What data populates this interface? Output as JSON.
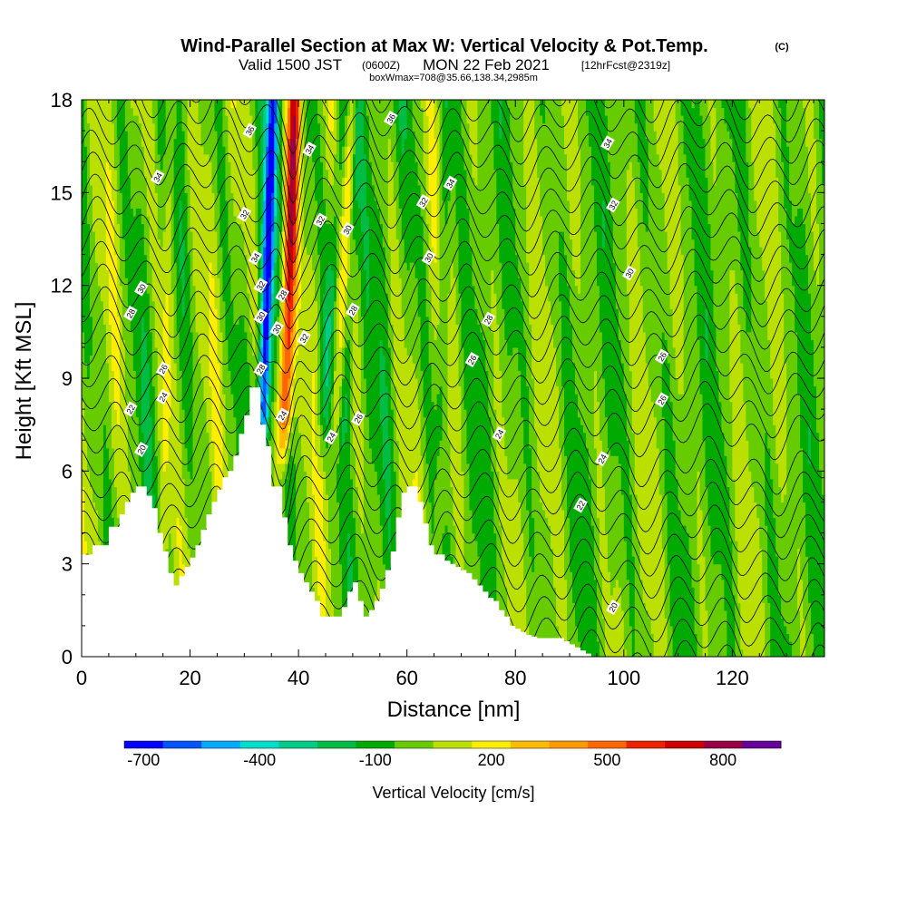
{
  "title": {
    "main": "Wind-Parallel Section at Max W: Vertical Velocity & Pot.Temp.",
    "copyright": "(C)",
    "valid_prefix": "Valid 1500 JST",
    "valid_utc": "(0600Z)",
    "valid_date": "MON 22 Feb 2021",
    "forecast": "[12hrFcst@2319z]",
    "box": "boxWmax=708@35.66,138.34,2985m"
  },
  "chart_data": {
    "type": "heatmap",
    "xlabel": "Distance [nm]",
    "ylabel": "Height [Kft MSL]",
    "xlim": [
      0,
      137
    ],
    "ylim": [
      0,
      18
    ],
    "x_ticks": [
      "0",
      "20",
      "40",
      "60",
      "80",
      "100",
      "120"
    ],
    "y_ticks": [
      "0",
      "3",
      "6",
      "9",
      "12",
      "15",
      "18"
    ],
    "terrain": {
      "x": [
        0,
        2,
        5,
        7,
        8,
        9,
        10,
        11,
        12,
        13,
        14,
        15,
        16,
        17,
        18,
        19,
        20,
        21,
        22,
        23,
        24,
        25,
        26,
        27,
        28,
        29,
        30,
        31,
        32,
        33,
        34,
        35,
        36,
        37,
        38,
        39,
        40,
        41,
        42,
        43,
        44,
        45,
        46,
        47,
        48,
        49,
        50,
        51,
        52,
        53,
        54,
        55,
        56,
        57,
        58,
        59,
        60,
        61,
        62,
        63,
        64,
        65,
        66,
        67,
        68,
        69,
        70,
        71,
        72,
        73,
        74,
        75,
        76,
        77,
        78,
        79,
        80,
        81,
        82,
        83,
        84,
        85,
        86,
        87,
        88,
        89,
        90,
        91,
        92,
        93,
        94,
        137
      ],
      "height": [
        3.3,
        3.6,
        4.2,
        4.6,
        5.0,
        5.3,
        5.5,
        5.5,
        5.2,
        4.8,
        4.0,
        3.4,
        2.7,
        2.3,
        2.6,
        2.9,
        3.2,
        3.6,
        4.1,
        4.6,
        5.0,
        5.4,
        5.8,
        6.0,
        6.5,
        7.2,
        7.8,
        8.7,
        8.7,
        7.5,
        6.8,
        5.5,
        5.5,
        4.5,
        3.6,
        3.1,
        2.7,
        2.4,
        2.1,
        1.8,
        1.3,
        1.3,
        1.3,
        1.3,
        1.6,
        2.1,
        2.4,
        1.8,
        1.3,
        1.5,
        1.8,
        2.2,
        2.8,
        3.4,
        4.5,
        5.3,
        5.5,
        5.5,
        5.0,
        4.3,
        3.6,
        3.3,
        3.3,
        3.1,
        3.0,
        2.9,
        2.8,
        2.7,
        2.5,
        2.3,
        2.1,
        1.9,
        1.8,
        1.5,
        1.3,
        1.0,
        0.9,
        0.8,
        0.7,
        0.65,
        0.6,
        0.6,
        0.6,
        0.6,
        0.6,
        0.5,
        0.4,
        0.3,
        0.2,
        0.1,
        0.0,
        0.0
      ]
    },
    "updraft_core": {
      "x_center": 37.5,
      "value": 708,
      "unit": "cm/s"
    },
    "downdraft_core": {
      "x_center": 33.5,
      "value": -650,
      "unit": "cm/s"
    },
    "isentrope_labels": [
      {
        "x": 57,
        "y": 17.4,
        "text": "36"
      },
      {
        "x": 31,
        "y": 17.0,
        "text": "36"
      },
      {
        "x": 42,
        "y": 16.4,
        "text": "34"
      },
      {
        "x": 97,
        "y": 16.6,
        "text": "34"
      },
      {
        "x": 14,
        "y": 15.5,
        "text": "34"
      },
      {
        "x": 68,
        "y": 15.3,
        "text": "34"
      },
      {
        "x": 30,
        "y": 14.3,
        "text": "32"
      },
      {
        "x": 44,
        "y": 14.1,
        "text": "32"
      },
      {
        "x": 63,
        "y": 14.7,
        "text": "32"
      },
      {
        "x": 98,
        "y": 14.6,
        "text": "32"
      },
      {
        "x": 49,
        "y": 13.8,
        "text": "30"
      },
      {
        "x": 32,
        "y": 12.9,
        "text": "34"
      },
      {
        "x": 64,
        "y": 12.9,
        "text": "30"
      },
      {
        "x": 101,
        "y": 12.4,
        "text": "30"
      },
      {
        "x": 11,
        "y": 11.9,
        "text": "30"
      },
      {
        "x": 33,
        "y": 12.0,
        "text": "32"
      },
      {
        "x": 37,
        "y": 11.7,
        "text": "28"
      },
      {
        "x": 9,
        "y": 11.1,
        "text": "28"
      },
      {
        "x": 33,
        "y": 11.0,
        "text": "30"
      },
      {
        "x": 50,
        "y": 11.2,
        "text": "28"
      },
      {
        "x": 75,
        "y": 10.9,
        "text": "28"
      },
      {
        "x": 36,
        "y": 10.6,
        "text": "30"
      },
      {
        "x": 41,
        "y": 10.3,
        "text": "32"
      },
      {
        "x": 72,
        "y": 9.6,
        "text": "26"
      },
      {
        "x": 107,
        "y": 9.7,
        "text": "26"
      },
      {
        "x": 15,
        "y": 9.3,
        "text": "26"
      },
      {
        "x": 33,
        "y": 9.3,
        "text": "28"
      },
      {
        "x": 15,
        "y": 8.4,
        "text": "24"
      },
      {
        "x": 107,
        "y": 8.3,
        "text": "26"
      },
      {
        "x": 9,
        "y": 8.0,
        "text": "22"
      },
      {
        "x": 37,
        "y": 7.8,
        "text": "24"
      },
      {
        "x": 51,
        "y": 7.7,
        "text": "26"
      },
      {
        "x": 77,
        "y": 7.2,
        "text": "24"
      },
      {
        "x": 46,
        "y": 7.1,
        "text": "24"
      },
      {
        "x": 11,
        "y": 6.7,
        "text": "20"
      },
      {
        "x": 96,
        "y": 6.4,
        "text": "24"
      },
      {
        "x": 92,
        "y": 4.9,
        "text": "22"
      },
      {
        "x": 98,
        "y": 1.6,
        "text": "20"
      }
    ],
    "colorbar": {
      "label": "Vertical Velocity [cm/s]",
      "tick_labels": [
        "-700",
        "-400",
        "-100",
        "200",
        "500",
        "800"
      ],
      "bins": [
        {
          "from": -750,
          "to": -650,
          "color": "#0000ff"
        },
        {
          "from": -650,
          "to": -550,
          "color": "#0055ff"
        },
        {
          "from": -550,
          "to": -450,
          "color": "#00aaff"
        },
        {
          "from": -450,
          "to": -350,
          "color": "#00ddcc"
        },
        {
          "from": -350,
          "to": -250,
          "color": "#00cc88"
        },
        {
          "from": -250,
          "to": -150,
          "color": "#00bb44"
        },
        {
          "from": -150,
          "to": -50,
          "color": "#00aa00"
        },
        {
          "from": -50,
          "to": 50,
          "color": "#66cc00"
        },
        {
          "from": 50,
          "to": 150,
          "color": "#bbe000"
        },
        {
          "from": 150,
          "to": 250,
          "color": "#ffee00"
        },
        {
          "from": 250,
          "to": 350,
          "color": "#ffbb00"
        },
        {
          "from": 350,
          "to": 450,
          "color": "#ff9900"
        },
        {
          "from": 450,
          "to": 550,
          "color": "#ff6600"
        },
        {
          "from": 550,
          "to": 650,
          "color": "#ee2200"
        },
        {
          "from": 650,
          "to": 750,
          "color": "#cc0000"
        },
        {
          "from": 750,
          "to": 850,
          "color": "#990044"
        },
        {
          "from": 850,
          "to": 950,
          "color": "#660099"
        }
      ]
    }
  }
}
